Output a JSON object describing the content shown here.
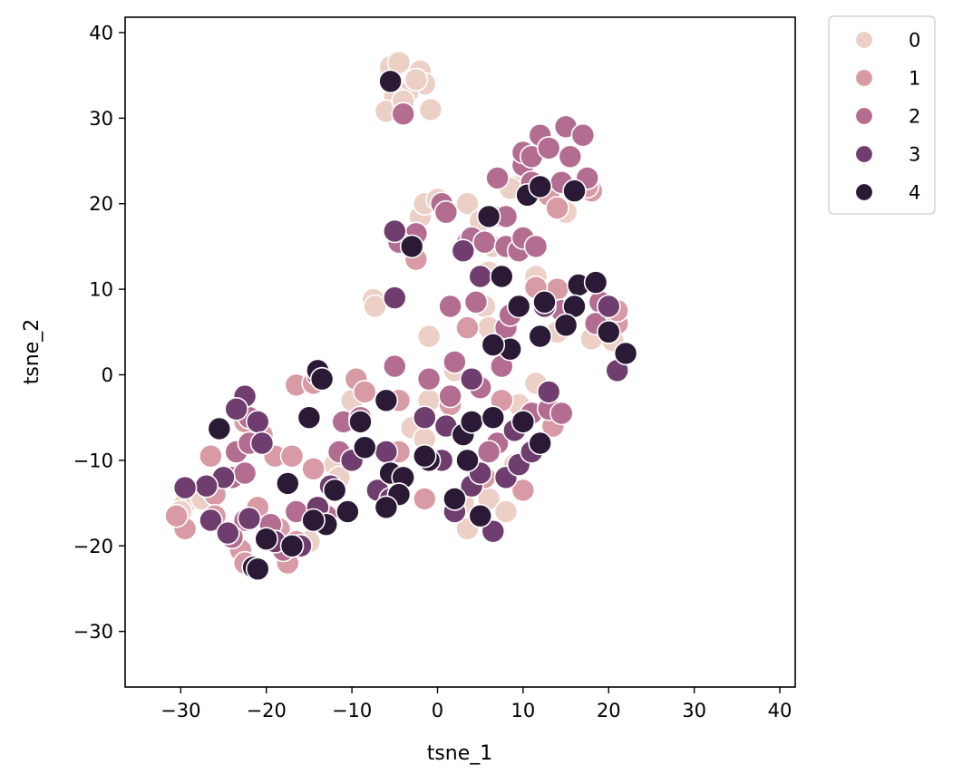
{
  "chart_data": {
    "type": "scatter",
    "title": "",
    "xlabel": "tsne_1",
    "ylabel": "tsne_2",
    "xlim": [
      -36.5,
      41.8
    ],
    "ylim": [
      -36.5,
      41.8
    ],
    "xticks": [
      -30,
      -20,
      -10,
      0,
      10,
      20,
      30,
      40
    ],
    "yticks": [
      -30,
      -20,
      -10,
      0,
      10,
      20,
      30,
      40
    ],
    "tick_labels_x": [
      "−30",
      "−20",
      "−10",
      "0",
      "10",
      "20",
      "30",
      "40"
    ],
    "tick_labels_y": [
      "−30",
      "−20",
      "−10",
      "0",
      "10",
      "20",
      "30",
      "40"
    ],
    "grid": false,
    "legend_position": "outside-top-right",
    "series": [
      {
        "name": "0",
        "color": "#ecd0c6",
        "points": [
          [
            -5.5,
            36
          ],
          [
            -4.5,
            36.5
          ],
          [
            -2,
            35.5
          ],
          [
            -1.5,
            34
          ],
          [
            -3.5,
            33
          ],
          [
            -5,
            32.5
          ],
          [
            -6,
            30.8
          ],
          [
            -4,
            32
          ],
          [
            -0.8,
            31
          ],
          [
            -2.5,
            34.5
          ],
          [
            -7.5,
            8.8
          ],
          [
            -7.3,
            8
          ],
          [
            -1,
            4.5
          ],
          [
            -3,
            -6.2
          ],
          [
            -1.5,
            -7.5
          ],
          [
            -12,
            -10.5
          ],
          [
            -11.5,
            -12
          ],
          [
            -29.5,
            -15
          ],
          [
            -30,
            -16
          ],
          [
            -27.5,
            -14.5
          ],
          [
            -16,
            -20
          ],
          [
            -15,
            -19.5
          ],
          [
            -2,
            18.5
          ],
          [
            -1.5,
            20
          ],
          [
            0,
            20.5
          ],
          [
            3.5,
            20
          ],
          [
            5,
            18
          ],
          [
            6.5,
            15
          ],
          [
            6,
            12
          ],
          [
            5.5,
            8
          ],
          [
            6,
            5.5
          ],
          [
            9,
            22
          ],
          [
            8.5,
            21.8
          ],
          [
            11.5,
            11.5
          ],
          [
            13.5,
            9
          ],
          [
            14,
            5
          ],
          [
            15,
            19
          ],
          [
            18,
            4.2
          ],
          [
            20.5,
            4
          ],
          [
            -1,
            -3
          ],
          [
            3,
            -15
          ],
          [
            3.5,
            -18
          ],
          [
            6,
            -14.5
          ],
          [
            8,
            -16
          ],
          [
            9,
            -10.5
          ],
          [
            11.5,
            -1
          ],
          [
            9.5,
            -3.5
          ],
          [
            2,
            0.5
          ],
          [
            -9,
            -1.5
          ],
          [
            -10,
            -3
          ]
        ]
      },
      {
        "name": "1",
        "color": "#d89aa5",
        "points": [
          [
            -16.5,
            -1.2
          ],
          [
            -14.5,
            -1
          ],
          [
            -9.5,
            -0.5
          ],
          [
            -8.5,
            -2
          ],
          [
            -22.5,
            -5.5
          ],
          [
            -20.5,
            -7
          ],
          [
            -19,
            -9.5
          ],
          [
            -17,
            -9.5
          ],
          [
            -14.5,
            -11
          ],
          [
            -26.5,
            -9.5
          ],
          [
            -26,
            -14
          ],
          [
            -26,
            -16.5
          ],
          [
            -29.5,
            -18
          ],
          [
            -30.5,
            -16.5
          ],
          [
            -21,
            -15.5
          ],
          [
            -18.5,
            -18
          ],
          [
            -17.5,
            -22
          ],
          [
            -16.5,
            -19.5
          ],
          [
            -23,
            -20.5
          ],
          [
            -22.5,
            -22
          ],
          [
            -4.5,
            -3
          ],
          [
            -4.5,
            -9
          ],
          [
            -1.5,
            -14.5
          ],
          [
            1.5,
            -3.5
          ],
          [
            3.5,
            5.5
          ],
          [
            3.5,
            15.5
          ],
          [
            -2.5,
            13.5
          ],
          [
            7.5,
            18.5
          ],
          [
            13,
            21
          ],
          [
            14,
            19.5
          ],
          [
            18,
            21.5
          ],
          [
            17.5,
            22
          ],
          [
            14,
            10
          ],
          [
            11.5,
            10.2
          ],
          [
            21,
            6
          ],
          [
            21,
            7.5
          ],
          [
            13.5,
            -6
          ],
          [
            10,
            -13.5
          ],
          [
            5.5,
            -12
          ],
          [
            7.5,
            -3
          ]
        ]
      },
      {
        "name": "2",
        "color": "#b36d91",
        "points": [
          [
            -4,
            30.5
          ],
          [
            -2.5,
            16.5
          ],
          [
            -4.5,
            15.5
          ],
          [
            0.5,
            20
          ],
          [
            1,
            19
          ],
          [
            4,
            16
          ],
          [
            5.5,
            15.5
          ],
          [
            8,
            15
          ],
          [
            8,
            18.5
          ],
          [
            7,
            23
          ],
          [
            10,
            24.5
          ],
          [
            10,
            26
          ],
          [
            11,
            25.5
          ],
          [
            12,
            28
          ],
          [
            13,
            26.5
          ],
          [
            15,
            29
          ],
          [
            17,
            28
          ],
          [
            15.5,
            25.5
          ],
          [
            17.5,
            23
          ],
          [
            14.5,
            22.5
          ],
          [
            11,
            22.5
          ],
          [
            9.5,
            14.5
          ],
          [
            10,
            16
          ],
          [
            11.5,
            15
          ],
          [
            1.5,
            8
          ],
          [
            4.5,
            8.5
          ],
          [
            8,
            5.5
          ],
          [
            8.5,
            7
          ],
          [
            14.5,
            7.5
          ],
          [
            19,
            8.5
          ],
          [
            18.5,
            6
          ],
          [
            -5,
            1
          ],
          [
            -1,
            -0.5
          ],
          [
            2,
            1.5
          ],
          [
            1.5,
            -2.5
          ],
          [
            5,
            -1.5
          ],
          [
            7.5,
            1
          ],
          [
            7,
            -8
          ],
          [
            6,
            -9
          ],
          [
            11,
            -4.5
          ],
          [
            13,
            -4
          ],
          [
            14.5,
            -4.5
          ],
          [
            -22,
            -5
          ],
          [
            -23.5,
            -9
          ],
          [
            -22,
            -8
          ],
          [
            -24,
            -12
          ],
          [
            -22.5,
            -11.5
          ],
          [
            -22.5,
            -17
          ],
          [
            -24,
            -19
          ],
          [
            -19.5,
            -17.5
          ],
          [
            -18,
            -20.5
          ],
          [
            -16.5,
            -16
          ],
          [
            -13,
            -16.5
          ],
          [
            -11.5,
            -9
          ],
          [
            -11,
            -5.5
          ],
          [
            -9,
            -5
          ]
        ]
      },
      {
        "name": "3",
        "color": "#6f3d6e",
        "points": [
          [
            -5,
            16.8
          ],
          [
            -5,
            9
          ],
          [
            3,
            14.5
          ],
          [
            5,
            11.5
          ],
          [
            12.5,
            8
          ],
          [
            20,
            8
          ],
          [
            21,
            0.5
          ],
          [
            -22.5,
            -2.5
          ],
          [
            -23.5,
            -4
          ],
          [
            -21,
            -5.5
          ],
          [
            -20.5,
            -8
          ],
          [
            -25,
            -12
          ],
          [
            -27,
            -13
          ],
          [
            -29.5,
            -13.2
          ],
          [
            -26.5,
            -17
          ],
          [
            -24.5,
            -18.5
          ],
          [
            -22,
            -16.8
          ],
          [
            -19,
            -19.5
          ],
          [
            -16,
            -20
          ],
          [
            -14,
            -15.5
          ],
          [
            -12.5,
            -13
          ],
          [
            -10,
            -10
          ],
          [
            -6,
            -9
          ],
          [
            -7,
            -13.5
          ],
          [
            -5.5,
            -14.5
          ],
          [
            0.5,
            -10
          ],
          [
            2,
            -16
          ],
          [
            4,
            -13
          ],
          [
            5,
            -11.5
          ],
          [
            6.5,
            -18.3
          ],
          [
            8,
            -12
          ],
          [
            9.5,
            -10.5
          ],
          [
            9,
            -6.5
          ],
          [
            11,
            -9
          ],
          [
            13,
            -2
          ],
          [
            4,
            -0.5
          ],
          [
            -1.5,
            -5
          ],
          [
            1,
            -6
          ],
          [
            -14,
            0
          ]
        ]
      },
      {
        "name": "4",
        "color": "#2b1a35",
        "points": [
          [
            -5.5,
            34.3
          ],
          [
            -3,
            15
          ],
          [
            6,
            18.5
          ],
          [
            7.5,
            11.5
          ],
          [
            10.5,
            21
          ],
          [
            12,
            22
          ],
          [
            16,
            21.5
          ],
          [
            16.5,
            10.5
          ],
          [
            18.5,
            10.8
          ],
          [
            16,
            8
          ],
          [
            15,
            5.8
          ],
          [
            12,
            4.5
          ],
          [
            12.5,
            8.5
          ],
          [
            9.5,
            8
          ],
          [
            8.5,
            3
          ],
          [
            6.5,
            3.5
          ],
          [
            20,
            5
          ],
          [
            22,
            2.5
          ],
          [
            -14,
            0.5
          ],
          [
            -13.5,
            -0.5
          ],
          [
            -15,
            -5
          ],
          [
            -9,
            -5.5
          ],
          [
            -6,
            -3
          ],
          [
            -25.5,
            -6.3
          ],
          [
            -8.5,
            -8.5
          ],
          [
            -5.5,
            -11.5
          ],
          [
            -4,
            -12
          ],
          [
            -4.5,
            -14
          ],
          [
            -6,
            -15.5
          ],
          [
            -1,
            -10
          ],
          [
            -1.5,
            -9.5
          ],
          [
            3,
            -7
          ],
          [
            3.5,
            -10
          ],
          [
            4,
            -5.5
          ],
          [
            6.5,
            -5
          ],
          [
            2,
            -14.5
          ],
          [
            5,
            -16.5
          ],
          [
            10,
            -5.5
          ],
          [
            12,
            -8
          ],
          [
            -17.5,
            -12.7
          ],
          [
            -12,
            -13.5
          ],
          [
            -13,
            -17.5
          ],
          [
            -14.5,
            -17
          ],
          [
            -10.5,
            -16
          ],
          [
            -20,
            -19.2
          ],
          [
            -17,
            -20
          ],
          [
            -21.5,
            -22.5
          ],
          [
            -21,
            -22.7
          ]
        ]
      }
    ]
  }
}
